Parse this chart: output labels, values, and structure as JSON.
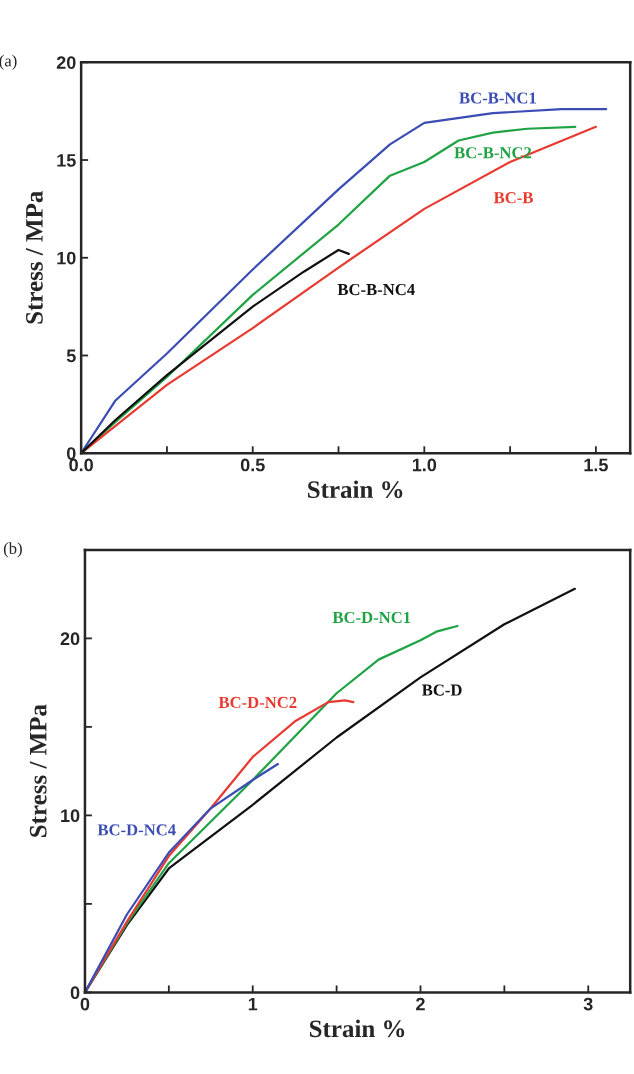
{
  "chart_data": [
    {
      "type": "line",
      "xlabel": "Strain %",
      "ylabel": "Stress / MPa",
      "xlim": [
        0,
        1.6
      ],
      "xticks": [
        {
          "value": 0,
          "label": "0.0"
        },
        {
          "value": 0.25,
          "label": null
        },
        0.5,
        {
          "value": 0.75,
          "label": null
        },
        {
          "value": 1,
          "label": "1.0"
        },
        {
          "value": 1.25,
          "label": null
        },
        1.5
      ],
      "ylim": [
        0,
        20
      ],
      "yticks": [
        0,
        5,
        10,
        15,
        20
      ],
      "grid": false,
      "annotations": [
        "(a)"
      ],
      "series": [
        {
          "name": "BC-B-NC1",
          "color": "#3b4db5",
          "x": [
            0,
            0.1,
            0.25,
            0.5,
            0.75,
            0.9,
            1.0,
            1.2,
            1.4,
            1.53
          ],
          "values": [
            0,
            2.7,
            5.1,
            9.4,
            13.5,
            15.8,
            16.9,
            17.4,
            17.6,
            17.6
          ]
        },
        {
          "name": "BC-B-NC2",
          "color": "#1fa345",
          "x": [
            0,
            0.1,
            0.25,
            0.5,
            0.75,
            0.9,
            1.0,
            1.1,
            1.2,
            1.3,
            1.44
          ],
          "values": [
            0,
            1.6,
            3.9,
            8.1,
            11.7,
            14.2,
            14.9,
            16.0,
            16.4,
            16.6,
            16.7
          ]
        },
        {
          "name": "BC-B",
          "color": "#e83a30",
          "x": [
            0,
            0.1,
            0.25,
            0.5,
            0.75,
            1.0,
            1.25,
            1.5
          ],
          "values": [
            0,
            1.4,
            3.5,
            6.4,
            9.5,
            12.5,
            14.9,
            16.7
          ]
        },
        {
          "name": "BC-B-NC4",
          "color": "#111111",
          "x": [
            0,
            0.1,
            0.25,
            0.5,
            0.65,
            0.75,
            0.78
          ],
          "values": [
            0,
            1.7,
            4.0,
            7.5,
            9.3,
            10.4,
            10.2
          ]
        }
      ]
    },
    {
      "type": "line",
      "xlabel": "Strain %",
      "ylabel": "Stress / MPa",
      "xlim": [
        0,
        3.25
      ],
      "xticks": [
        0,
        {
          "value": 0.5,
          "label": null
        },
        1,
        {
          "value": 1.5,
          "label": null
        },
        2,
        {
          "value": 2.5,
          "label": null
        },
        3
      ],
      "ylim": [
        0,
        25
      ],
      "yticks": [
        0,
        {
          "value": 5,
          "label": null
        },
        10,
        {
          "value": 15,
          "label": null
        },
        20
      ],
      "grid": false,
      "annotations": [
        "(b)"
      ],
      "series": [
        {
          "name": "BC-D",
          "color": "#111111",
          "x": [
            0,
            0.25,
            0.5,
            1.0,
            1.5,
            2.0,
            2.5,
            2.92
          ],
          "values": [
            0,
            3.8,
            7.0,
            10.6,
            14.4,
            17.8,
            20.8,
            22.8
          ]
        },
        {
          "name": "BC-D-NC1",
          "color": "#1fa345",
          "x": [
            0,
            0.25,
            0.5,
            1.0,
            1.5,
            1.75,
            2.0,
            2.1,
            2.22
          ],
          "values": [
            0,
            3.9,
            7.3,
            12.0,
            16.9,
            18.8,
            19.9,
            20.4,
            20.7
          ]
        },
        {
          "name": "BC-D-NC2",
          "color": "#e83a30",
          "x": [
            0,
            0.25,
            0.5,
            0.75,
            1.0,
            1.25,
            1.45,
            1.55,
            1.6
          ],
          "values": [
            0,
            4.0,
            7.7,
            10.4,
            13.3,
            15.3,
            16.4,
            16.5,
            16.4
          ]
        },
        {
          "name": "BC-D-NC4",
          "color": "#3b4db5",
          "x": [
            0,
            0.25,
            0.5,
            0.75,
            1.0,
            1.15
          ],
          "values": [
            0,
            4.4,
            7.9,
            10.4,
            12.0,
            12.9
          ]
        }
      ]
    }
  ]
}
